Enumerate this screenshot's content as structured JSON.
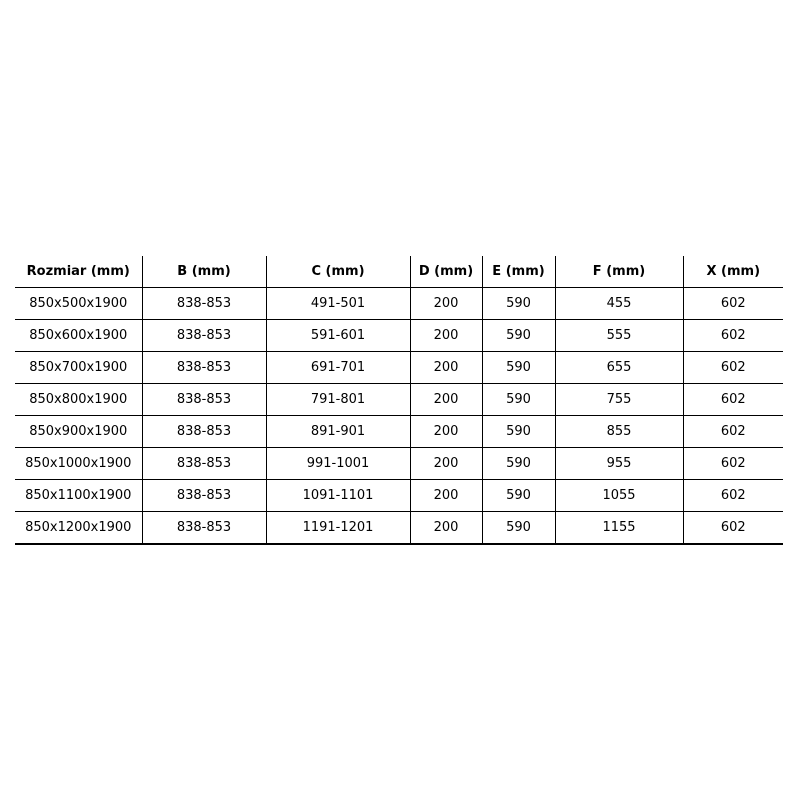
{
  "table": {
    "headers": [
      "Rozmiar (mm)",
      "B (mm)",
      "C (mm)",
      "D (mm)",
      "E (mm)",
      "F (mm)",
      "X (mm)"
    ],
    "rows": [
      [
        "850x500x1900",
        "838-853",
        "491-501",
        "200",
        "590",
        "455",
        "602"
      ],
      [
        "850x600x1900",
        "838-853",
        "591-601",
        "200",
        "590",
        "555",
        "602"
      ],
      [
        "850x700x1900",
        "838-853",
        "691-701",
        "200",
        "590",
        "655",
        "602"
      ],
      [
        "850x800x1900",
        "838-853",
        "791-801",
        "200",
        "590",
        "755",
        "602"
      ],
      [
        "850x900x1900",
        "838-853",
        "891-901",
        "200",
        "590",
        "855",
        "602"
      ],
      [
        "850x1000x1900",
        "838-853",
        "991-1001",
        "200",
        "590",
        "955",
        "602"
      ],
      [
        "850x1100x1900",
        "838-853",
        "1091-1101",
        "200",
        "590",
        "1055",
        "602"
      ],
      [
        "850x1200x1900",
        "838-853",
        "1191-1201",
        "200",
        "590",
        "1155",
        "602"
      ]
    ]
  }
}
